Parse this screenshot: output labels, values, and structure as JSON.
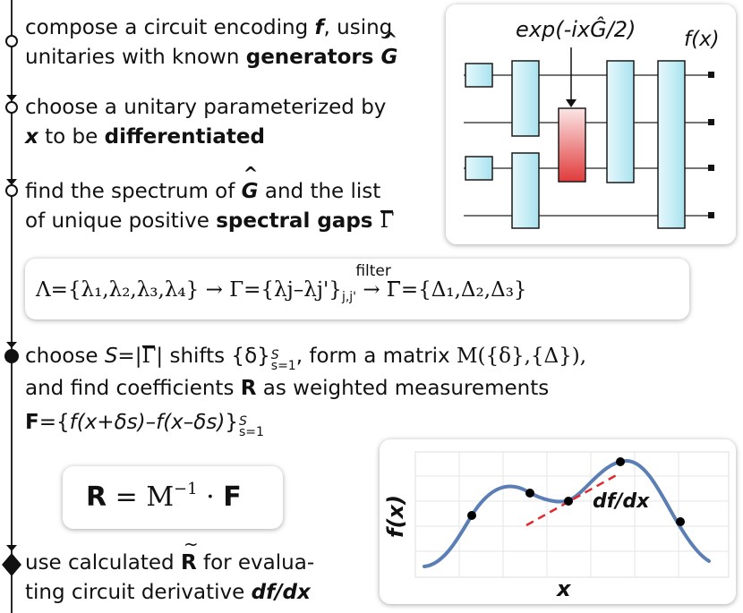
{
  "steps": {
    "s1": {
      "l1a": "compose a circuit encoding ",
      "l1b": "f",
      "l1c": ", using",
      "l2a": "unitaries with known ",
      "l2b": "generators ",
      "l2c": "G"
    },
    "s2": {
      "l1": "choose a unitary parameterized by",
      "l2a": "x",
      "l2b": " to be ",
      "l2c": "differentiated"
    },
    "s3": {
      "l1a": "find the spectrum of ",
      "l1b": "G",
      "l1c": " and the list",
      "l2a": "of unique positive ",
      "l2b": "spectral gaps ",
      "l2c": "Γ"
    },
    "s4": {
      "l1a": "choose ",
      "l1b": "S",
      "l1c": "=|",
      "l1d": "Γ",
      "l1e": "| shifts {δ}",
      "l1f_sub": "s=1",
      "l1f_sup": "S",
      "l1g": ", form a matrix ",
      "l1h": "M({δ},{Δ}),",
      "l2a": "and find coefficients ",
      "l2b": "R",
      "l2c": " as weighted measurements",
      "l3a": "F",
      "l3b": "={",
      "l3c": "f(x+δs)–f(x–δs)",
      "l3d": "}",
      "l3e_sub": "s=1",
      "l3e_sup": "S"
    },
    "s5": {
      "l1a": "use calculated ",
      "l1b": "R",
      "l1c": " for evalua-",
      "l2a": "ting circuit derivative ",
      "l2b": "df/dx"
    }
  },
  "equation1": {
    "lambda_set": "Λ={λ₁,λ₂,λ₃,λ₄}",
    "arrow1": "→",
    "gamma_set_a": "Γ={λj–λj'}",
    "gamma_set_sub": "j,j'",
    "filter_label": "filter",
    "arrow2": "→",
    "gamma_bar_sym": "Γ",
    "gamma_bar_set": "={Δ₁,Δ₂,Δ₃}"
  },
  "equation2": {
    "lhs": "R",
    "eq": " = ",
    "matrix": "M",
    "exp": "−1",
    "dot": " · ",
    "rhs": "F"
  },
  "circuit": {
    "output_label": "f(x)",
    "gate_label": "exp(-ixĜ/2)",
    "qubits": 4,
    "colors": {
      "gate_fill": "#c8eef6",
      "gate_stroke": "#1a1a1a",
      "highlight_top": "#fbe6e6",
      "highlight_bottom": "#e03a3a"
    }
  },
  "plot": {
    "xlabel": "x",
    "ylabel": "f(x)",
    "annotation": "df/dx",
    "colors": {
      "curve": "#5b7fb4",
      "tangent": "#e0282e",
      "points": "#000000",
      "grid": "#e6e6e6"
    }
  }
}
